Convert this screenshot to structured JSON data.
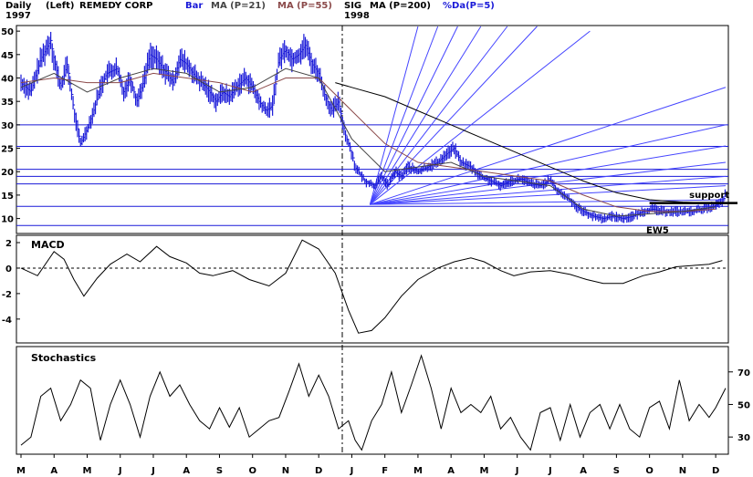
{
  "header": {
    "period": "Daily",
    "axis_side": "(Left)",
    "symbol": "REMEDY CORP",
    "year_start": "1997",
    "year_split": "1998",
    "legend": [
      {
        "label": "Bar",
        "color": "#1a1ad8"
      },
      {
        "label": "MA (P=21)",
        "color": "#444444"
      },
      {
        "label": "MA (P=55)",
        "color": "#8b4a4a"
      },
      {
        "label": "SIG",
        "color": "#000000"
      },
      {
        "label": "MA (P=200)",
        "color": "#000000"
      },
      {
        "label": "%Da(P=5)",
        "color": "#1a1ad8"
      }
    ]
  },
  "chart_data": [
    {
      "type": "bar",
      "panel": "price",
      "ylim": [
        7,
        51
      ],
      "yticks": [
        10,
        15,
        20,
        25,
        30,
        35,
        40,
        45,
        50
      ],
      "horizontal_lines": [
        8.5,
        12.6,
        17.4,
        19.0,
        20.5,
        25.4,
        30.0
      ],
      "months": [
        "M",
        "A",
        "M",
        "J",
        "J",
        "A",
        "S",
        "O",
        "N",
        "D",
        "J",
        "F",
        "M",
        "A",
        "M",
        "J",
        "J",
        "A",
        "S",
        "O",
        "N",
        "D"
      ],
      "close_path": [
        [
          0,
          39
        ],
        [
          0.3,
          37
        ],
        [
          0.6,
          44
        ],
        [
          0.9,
          48
        ],
        [
          1.0,
          44
        ],
        [
          1.2,
          38
        ],
        [
          1.4,
          43
        ],
        [
          1.6,
          33
        ],
        [
          1.8,
          26
        ],
        [
          2.0,
          29
        ],
        [
          2.2,
          33
        ],
        [
          2.4,
          38
        ],
        [
          2.6,
          41
        ],
        [
          2.9,
          42
        ],
        [
          3.1,
          37
        ],
        [
          3.3,
          40
        ],
        [
          3.5,
          35
        ],
        [
          3.7,
          39
        ],
        [
          3.9,
          45
        ],
        [
          4.1,
          44
        ],
        [
          4.3,
          42
        ],
        [
          4.6,
          39
        ],
        [
          4.8,
          44
        ],
        [
          5.0,
          43
        ],
        [
          5.3,
          40
        ],
        [
          5.6,
          38
        ],
        [
          5.9,
          35
        ],
        [
          6.1,
          37
        ],
        [
          6.3,
          36
        ],
        [
          6.5,
          38
        ],
        [
          6.8,
          40
        ],
        [
          7.0,
          38
        ],
        [
          7.2,
          35
        ],
        [
          7.4,
          33
        ],
        [
          7.6,
          34
        ],
        [
          7.8,
          44
        ],
        [
          8.0,
          46
        ],
        [
          8.2,
          44
        ],
        [
          8.4,
          45
        ],
        [
          8.6,
          47
        ],
        [
          8.8,
          43
        ],
        [
          9.0,
          41
        ],
        [
          9.2,
          36
        ],
        [
          9.4,
          33
        ],
        [
          9.6,
          35
        ],
        [
          9.8,
          28
        ],
        [
          10.0,
          24
        ],
        [
          10.1,
          21
        ],
        [
          10.2,
          20
        ],
        [
          10.4,
          18
        ],
        [
          10.7,
          17
        ],
        [
          10.9,
          19
        ],
        [
          11.1,
          17
        ],
        [
          11.3,
          20
        ],
        [
          11.5,
          19
        ],
        [
          11.7,
          21
        ],
        [
          12.0,
          20
        ],
        [
          12.3,
          21
        ],
        [
          12.6,
          22
        ],
        [
          12.9,
          24
        ],
        [
          13.1,
          25
        ],
        [
          13.3,
          22
        ],
        [
          13.6,
          21
        ],
        [
          13.9,
          19
        ],
        [
          14.2,
          18
        ],
        [
          14.5,
          17
        ],
        [
          14.8,
          18
        ],
        [
          15.1,
          18.5
        ],
        [
          15.4,
          17.5
        ],
        [
          15.7,
          17.0
        ],
        [
          16.0,
          18.3
        ],
        [
          16.2,
          16
        ],
        [
          16.4,
          15
        ],
        [
          16.6,
          14
        ],
        [
          16.8,
          12.5
        ],
        [
          17.0,
          11.5
        ],
        [
          17.3,
          10.5
        ],
        [
          17.6,
          10
        ],
        [
          17.9,
          10.5
        ],
        [
          18.2,
          10
        ],
        [
          18.5,
          10.5
        ],
        [
          18.8,
          11.5
        ],
        [
          19.1,
          12
        ],
        [
          19.4,
          11.5
        ],
        [
          19.7,
          11.5
        ],
        [
          20.0,
          11.5
        ],
        [
          20.3,
          11.5
        ],
        [
          20.6,
          12
        ],
        [
          20.9,
          12.5
        ],
        [
          21.2,
          13.5
        ],
        [
          21.3,
          15.5
        ]
      ],
      "ma_21": [
        [
          0,
          38
        ],
        [
          1,
          41
        ],
        [
          2,
          37
        ],
        [
          3,
          40
        ],
        [
          4,
          42
        ],
        [
          5,
          41
        ],
        [
          6,
          37
        ],
        [
          7,
          38
        ],
        [
          8,
          42
        ],
        [
          9,
          40
        ],
        [
          10,
          27
        ],
        [
          11,
          20
        ],
        [
          12,
          21
        ],
        [
          13,
          22
        ],
        [
          14,
          19
        ],
        [
          15,
          18
        ],
        [
          16,
          17
        ],
        [
          17,
          12
        ],
        [
          18,
          10.5
        ],
        [
          19,
          11
        ],
        [
          20,
          11.5
        ],
        [
          21,
          12.5
        ]
      ],
      "ma_55": [
        [
          0,
          39
        ],
        [
          1,
          40
        ],
        [
          2,
          39
        ],
        [
          3,
          39
        ],
        [
          4,
          41
        ],
        [
          5,
          40
        ],
        [
          6,
          39
        ],
        [
          7,
          37
        ],
        [
          8,
          40
        ],
        [
          9,
          40
        ],
        [
          10,
          33
        ],
        [
          11,
          26
        ],
        [
          12,
          22
        ],
        [
          13,
          21
        ],
        [
          14,
          20
        ],
        [
          15,
          19
        ],
        [
          16,
          18
        ],
        [
          17,
          15
        ],
        [
          18,
          12.5
        ],
        [
          19,
          11.5
        ],
        [
          20,
          11.5
        ],
        [
          21,
          12
        ]
      ],
      "ma_200": [
        [
          9.5,
          39
        ],
        [
          10,
          38
        ],
        [
          11,
          36
        ],
        [
          12,
          33
        ],
        [
          13,
          30
        ],
        [
          14,
          27
        ],
        [
          15,
          24
        ],
        [
          16,
          21
        ],
        [
          17,
          18
        ],
        [
          18,
          15.5
        ],
        [
          19,
          14
        ],
        [
          20,
          13.5
        ],
        [
          21.3,
          13.2
        ]
      ],
      "annotations": [
        "support",
        "EW5"
      ]
    },
    {
      "type": "line",
      "panel": "macd",
      "title": "MACD",
      "ylim": [
        -5.8,
        2.5
      ],
      "yticks": [
        2,
        0,
        -2,
        -4
      ],
      "zero_line": 0,
      "points": [
        [
          0,
          0
        ],
        [
          0.5,
          -0.6
        ],
        [
          1.0,
          1.3
        ],
        [
          1.3,
          0.7
        ],
        [
          1.6,
          -0.9
        ],
        [
          1.9,
          -2.2
        ],
        [
          2.3,
          -0.8
        ],
        [
          2.7,
          0.3
        ],
        [
          3.2,
          1.1
        ],
        [
          3.6,
          0.5
        ],
        [
          4.1,
          1.7
        ],
        [
          4.5,
          0.9
        ],
        [
          5.0,
          0.4
        ],
        [
          5.4,
          -0.4
        ],
        [
          5.8,
          -0.6
        ],
        [
          6.4,
          -0.2
        ],
        [
          6.9,
          -0.9
        ],
        [
          7.5,
          -1.4
        ],
        [
          8.0,
          -0.4
        ],
        [
          8.5,
          2.2
        ],
        [
          9.0,
          1.5
        ],
        [
          9.5,
          -0.4
        ],
        [
          9.9,
          -3.3
        ],
        [
          10.2,
          -5.1
        ],
        [
          10.6,
          -4.9
        ],
        [
          11.0,
          -3.9
        ],
        [
          11.5,
          -2.2
        ],
        [
          12.0,
          -0.9
        ],
        [
          12.6,
          0
        ],
        [
          13.1,
          0.5
        ],
        [
          13.6,
          0.8
        ],
        [
          14.0,
          0.5
        ],
        [
          14.5,
          -0.2
        ],
        [
          14.9,
          -0.6
        ],
        [
          15.4,
          -0.3
        ],
        [
          16.0,
          -0.2
        ],
        [
          16.6,
          -0.5
        ],
        [
          17.1,
          -0.9
        ],
        [
          17.6,
          -1.2
        ],
        [
          18.2,
          -1.2
        ],
        [
          18.8,
          -0.6
        ],
        [
          19.3,
          -0.3
        ],
        [
          19.8,
          0.1
        ],
        [
          20.3,
          0.2
        ],
        [
          20.8,
          0.3
        ],
        [
          21.2,
          0.6
        ]
      ]
    },
    {
      "type": "line",
      "panel": "stochastics",
      "title": "Stochastics",
      "ylim": [
        20,
        85
      ],
      "yticks": [
        70,
        50,
        30
      ],
      "points": [
        [
          0,
          25
        ],
        [
          0.3,
          30
        ],
        [
          0.6,
          55
        ],
        [
          0.9,
          60
        ],
        [
          1.2,
          40
        ],
        [
          1.5,
          50
        ],
        [
          1.8,
          65
        ],
        [
          2.1,
          60
        ],
        [
          2.4,
          28
        ],
        [
          2.7,
          50
        ],
        [
          3.0,
          65
        ],
        [
          3.3,
          50
        ],
        [
          3.6,
          30
        ],
        [
          3.9,
          55
        ],
        [
          4.2,
          70
        ],
        [
          4.5,
          55
        ],
        [
          4.8,
          62
        ],
        [
          5.1,
          50
        ],
        [
          5.4,
          40
        ],
        [
          5.7,
          35
        ],
        [
          6.0,
          48
        ],
        [
          6.3,
          36
        ],
        [
          6.6,
          48
        ],
        [
          6.9,
          30
        ],
        [
          7.2,
          35
        ],
        [
          7.5,
          40
        ],
        [
          7.8,
          42
        ],
        [
          8.1,
          58
        ],
        [
          8.4,
          75
        ],
        [
          8.7,
          55
        ],
        [
          9.0,
          68
        ],
        [
          9.3,
          55
        ],
        [
          9.6,
          35
        ],
        [
          9.9,
          40
        ],
        [
          10.1,
          28
        ],
        [
          10.3,
          22
        ],
        [
          10.6,
          40
        ],
        [
          10.9,
          50
        ],
        [
          11.2,
          70
        ],
        [
          11.5,
          45
        ],
        [
          11.8,
          62
        ],
        [
          12.1,
          80
        ],
        [
          12.4,
          60
        ],
        [
          12.7,
          35
        ],
        [
          13.0,
          60
        ],
        [
          13.3,
          45
        ],
        [
          13.6,
          50
        ],
        [
          13.9,
          45
        ],
        [
          14.2,
          55
        ],
        [
          14.5,
          35
        ],
        [
          14.8,
          42
        ],
        [
          15.1,
          30
        ],
        [
          15.4,
          22
        ],
        [
          15.7,
          45
        ],
        [
          16.0,
          48
        ],
        [
          16.3,
          28
        ],
        [
          16.6,
          50
        ],
        [
          16.9,
          30
        ],
        [
          17.2,
          45
        ],
        [
          17.5,
          50
        ],
        [
          17.8,
          35
        ],
        [
          18.1,
          50
        ],
        [
          18.4,
          35
        ],
        [
          18.7,
          30
        ],
        [
          19.0,
          48
        ],
        [
          19.3,
          52
        ],
        [
          19.6,
          35
        ],
        [
          19.9,
          65
        ],
        [
          20.2,
          40
        ],
        [
          20.5,
          50
        ],
        [
          20.8,
          42
        ],
        [
          21.0,
          48
        ],
        [
          21.3,
          60
        ]
      ]
    }
  ],
  "xaxis": {
    "labels": [
      "M",
      "A",
      "M",
      "J",
      "J",
      "A",
      "S",
      "O",
      "N",
      "D",
      "J",
      "F",
      "M",
      "A",
      "M",
      "J",
      "J",
      "A",
      "S",
      "O",
      "N",
      "D"
    ]
  },
  "colors": {
    "bars": "#1a1ad8",
    "ma21": "#444444",
    "ma55": "#8b4a4a",
    "ma200": "#000000",
    "fan": "#4444ff",
    "hline": "#1a1ad8",
    "support": "#000000"
  },
  "labels": {
    "macd_title": "MACD",
    "stoch_title": "Stochastics",
    "support": "support",
    "ew5": "EW5"
  }
}
